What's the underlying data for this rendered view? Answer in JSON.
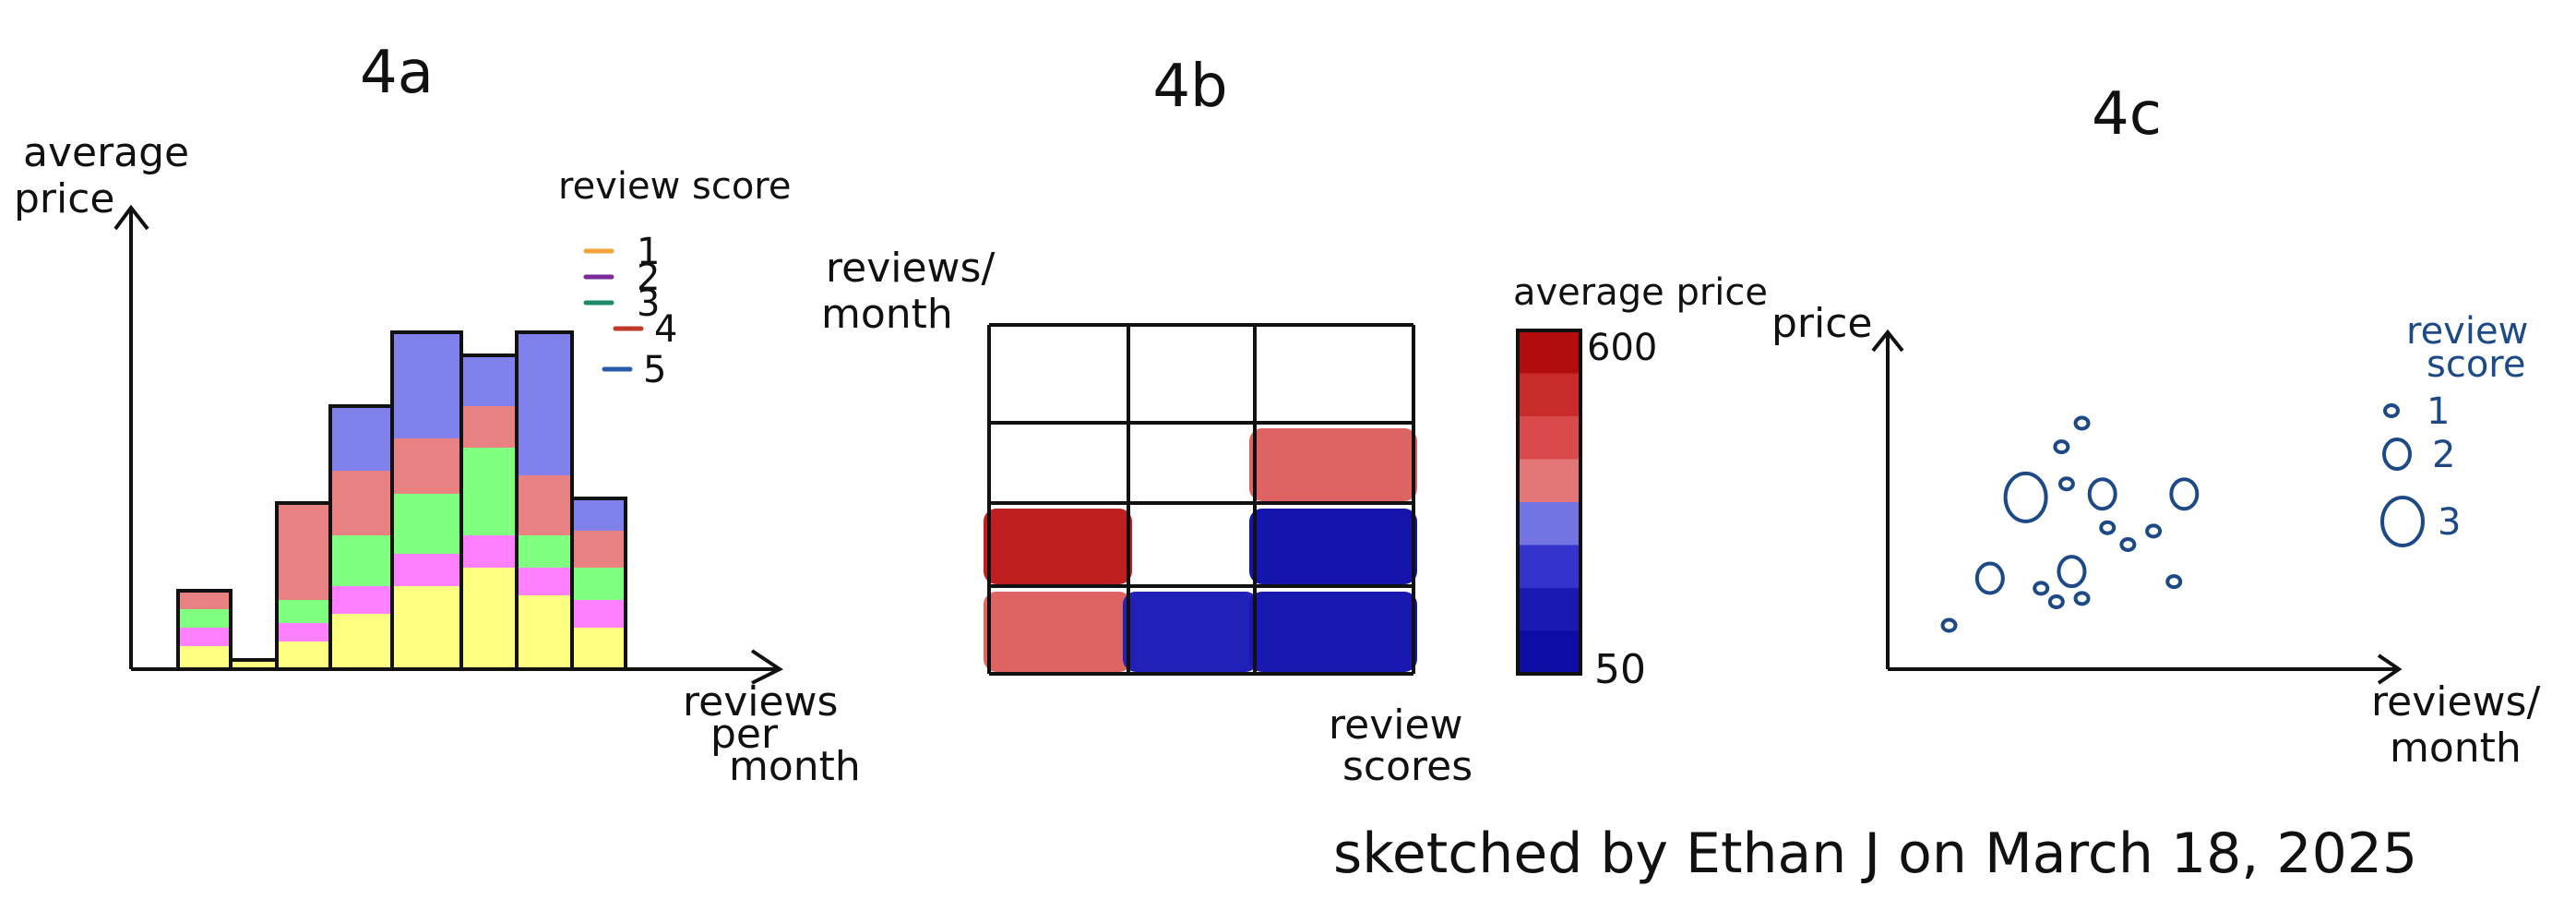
{
  "chart_data": [
    {
      "id": "4a",
      "type": "bar",
      "stacked": true,
      "title": "4a",
      "xlabel_lines": [
        "reviews",
        "per",
        "month"
      ],
      "ylabel_lines": [
        "average",
        "price"
      ],
      "legend_title": "review score",
      "legend_placement": "top-right",
      "series": [
        {
          "name": "1",
          "color": "#ffff7a",
          "values": [
            0.25,
            0.1,
            0.3,
            0.6,
            0.9,
            1.1,
            0.8,
            0.45
          ]
        },
        {
          "name": "2",
          "color": "#ff7aff",
          "values": [
            0.2,
            0,
            0.2,
            0.3,
            0.35,
            0.35,
            0.3,
            0.3
          ]
        },
        {
          "name": "3",
          "color": "#7aff7a",
          "values": [
            0.2,
            0,
            0.25,
            0.55,
            0.65,
            0.95,
            0.35,
            0.35
          ]
        },
        {
          "name": "4",
          "color": "#e77a7a",
          "values": [
            0.2,
            0,
            1.05,
            0.7,
            0.6,
            0.45,
            0.65,
            0.4
          ]
        },
        {
          "name": "5",
          "color": "#7a7aea",
          "values": [
            0,
            0,
            0,
            0.7,
            1.15,
            0.55,
            1.55,
            0.35
          ]
        }
      ],
      "legend_markers": [
        {
          "name": "1",
          "color": "#f4a33b"
        },
        {
          "name": "2",
          "color": "#7a2a9a"
        },
        {
          "name": "3",
          "color": "#1d8a6a"
        },
        {
          "name": "4",
          "color": "#c0392b"
        },
        {
          "name": "5",
          "color": "#2a5aa8"
        }
      ],
      "grid": false
    },
    {
      "id": "4b",
      "type": "heatmap",
      "title": "4b",
      "xlabel_lines": [
        "review",
        "scores"
      ],
      "ylabel_lines": [
        "reviews/",
        "month"
      ],
      "rows": 4,
      "cols": 3,
      "cells": [
        [
          null,
          null,
          null
        ],
        [
          null,
          null,
          400
        ],
        [
          550,
          null,
          100
        ],
        [
          400,
          150,
          120
        ]
      ],
      "colorbar": {
        "title": "average price",
        "min": 50,
        "max": 600,
        "min_label": "50",
        "max_label": "600",
        "stops": [
          "#b10d0d",
          "#c92a2a",
          "#d94a4a",
          "#e37777",
          "#7373e3",
          "#3434cc",
          "#1a1ab0",
          "#0d0da6"
        ]
      },
      "grid": false
    },
    {
      "id": "4c",
      "type": "scatter",
      "title": "4c",
      "xlabel_lines": [
        "reviews/",
        "month"
      ],
      "ylabel_lines": [
        "price"
      ],
      "legend_title_lines": [
        "review",
        "score"
      ],
      "legend_placement": "top-right",
      "marker_color": "#1d4a86",
      "size_levels": [
        {
          "label": "1",
          "rx": 7,
          "ry": 6
        },
        {
          "label": "2",
          "rx": 14,
          "ry": 16
        },
        {
          "label": "3",
          "rx": 22,
          "ry": 26
        }
      ],
      "points": [
        {
          "x": 0.12,
          "y": 0.13,
          "s": 1
        },
        {
          "x": 0.2,
          "y": 0.27,
          "s": 2
        },
        {
          "x": 0.3,
          "y": 0.24,
          "s": 1
        },
        {
          "x": 0.33,
          "y": 0.2,
          "s": 1
        },
        {
          "x": 0.36,
          "y": 0.29,
          "s": 2
        },
        {
          "x": 0.38,
          "y": 0.21,
          "s": 1
        },
        {
          "x": 0.27,
          "y": 0.51,
          "s": 3
        },
        {
          "x": 0.34,
          "y": 0.66,
          "s": 1
        },
        {
          "x": 0.35,
          "y": 0.55,
          "s": 1
        },
        {
          "x": 0.38,
          "y": 0.73,
          "s": 1
        },
        {
          "x": 0.42,
          "y": 0.52,
          "s": 2
        },
        {
          "x": 0.43,
          "y": 0.42,
          "s": 1
        },
        {
          "x": 0.47,
          "y": 0.37,
          "s": 1
        },
        {
          "x": 0.52,
          "y": 0.41,
          "s": 1
        },
        {
          "x": 0.56,
          "y": 0.26,
          "s": 1
        },
        {
          "x": 0.58,
          "y": 0.52,
          "s": 2
        }
      ],
      "grid": false
    }
  ],
  "credit": "sketched by Ethan J on March 18, 2025"
}
